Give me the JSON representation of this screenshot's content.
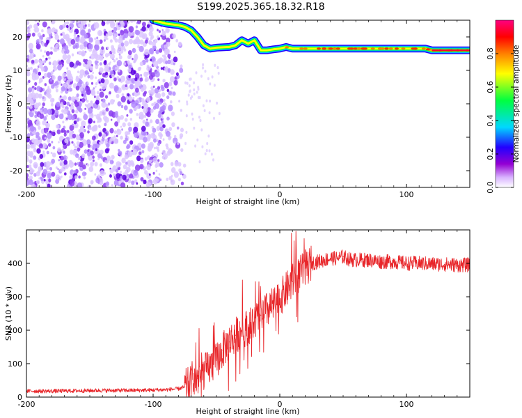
{
  "title": "S199.2025.365.18.32.R18",
  "chart_data": [
    {
      "type": "heatmap",
      "name": "spectrogram",
      "xlabel": "Height of straight line (km)",
      "ylabel": "Frequency (Hz)",
      "xlim": [
        -200,
        150
      ],
      "ylim": [
        -25,
        25
      ],
      "xticks": [
        -200,
        -100,
        0,
        100
      ],
      "yticks": [
        -20,
        -10,
        0,
        10,
        20
      ],
      "colorbar": {
        "label": "Normalized spectral amplitude",
        "range": [
          0,
          1
        ],
        "ticks": [
          0.0,
          0.2,
          0.4,
          0.6,
          0.8
        ],
        "colors": [
          "#ffffff",
          "#9400d3",
          "#2200ff",
          "#00d8ff",
          "#00ff40",
          "#ffff00",
          "#ff8000",
          "#ff0000",
          "#ff0080"
        ]
      },
      "tone_track": {
        "x": [
          -100,
          -90,
          -80,
          -75,
          -70,
          -65,
          -60,
          -55,
          -50,
          -40,
          -35,
          -30,
          -25,
          -20,
          -15,
          -10,
          -5,
          0,
          5,
          10,
          20,
          40,
          60,
          80,
          100,
          115,
          120,
          150
        ],
        "y": [
          25,
          24,
          23.5,
          23,
          22,
          20,
          17.5,
          16.5,
          16.8,
          17,
          17.5,
          19,
          18,
          19,
          16,
          16,
          16.3,
          16.5,
          17,
          16.5,
          16.5,
          16.5,
          16.5,
          16.5,
          16.5,
          16.5,
          16,
          16
        ]
      },
      "noise_region": {
        "x": [
          -200,
          -75
        ],
        "y": [
          -25,
          25
        ]
      }
    },
    {
      "type": "line",
      "name": "snr",
      "xlabel": "Height of straight line (km)",
      "ylabel": "SNR (10 * v/v)",
      "xlim": [
        -200,
        150
      ],
      "ylim": [
        0,
        500
      ],
      "xticks": [
        -200,
        -100,
        0,
        100
      ],
      "yticks": [
        0,
        100,
        200,
        300,
        400
      ],
      "color": "#e8262a",
      "series": [
        {
          "name": "SNR",
          "x": [
            -200,
            -180,
            -160,
            -140,
            -120,
            -100,
            -90,
            -80,
            -75,
            -70,
            -65,
            -60,
            -55,
            -50,
            -45,
            -40,
            -35,
            -30,
            -25,
            -20,
            -15,
            -10,
            -5,
            0,
            5,
            10,
            15,
            20,
            25,
            30,
            35,
            40,
            45,
            50,
            55,
            60,
            70,
            80,
            90,
            100,
            110,
            120,
            130,
            140,
            150
          ],
          "y": [
            18,
            18,
            19,
            20,
            20,
            21,
            22,
            25,
            30,
            40,
            55,
            75,
            90,
            110,
            140,
            165,
            185,
            200,
            210,
            225,
            245,
            260,
            275,
            295,
            320,
            345,
            365,
            385,
            400,
            405,
            410,
            415,
            415,
            420,
            412,
            410,
            410,
            405,
            405,
            400,
            400,
            398,
            397,
            395,
            395
          ]
        }
      ]
    }
  ]
}
